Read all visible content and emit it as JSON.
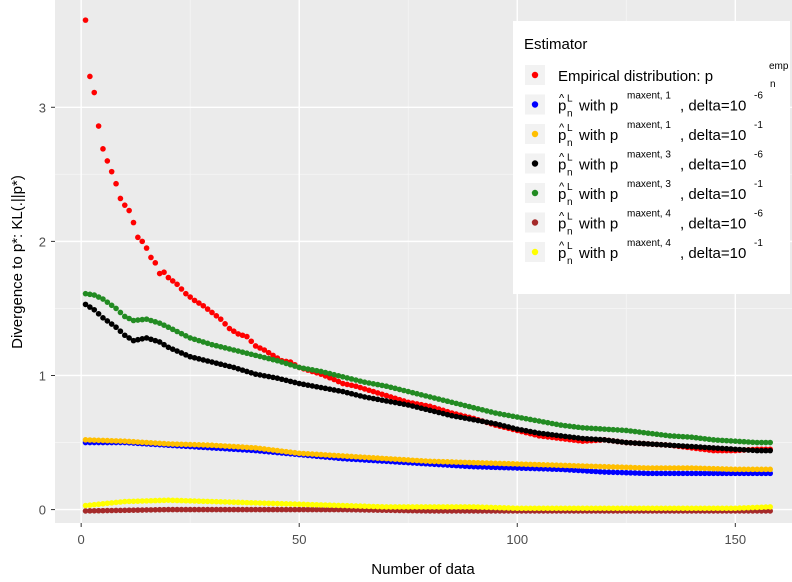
{
  "chart_data": {
    "type": "scatter",
    "title": "",
    "xlabel": "Number of data",
    "ylabel": "Divergence to p*: KL(.||p*)",
    "xlim": [
      -6,
      163
    ],
    "ylim": [
      -0.1,
      3.8
    ],
    "x_ticks": [
      0,
      50,
      100,
      150
    ],
    "y_ticks": [
      0,
      1,
      2,
      3
    ],
    "x_tick_labels": [
      "0",
      "50",
      "100",
      "150"
    ],
    "y_tick_labels": [
      "0",
      "1",
      "2",
      "3"
    ],
    "grid": true,
    "legend_position": "top-right",
    "legend_title": "Estimator",
    "series": [
      {
        "name": "Empirical distribution: p_n^emp",
        "label_main": "Empirical distribution: p",
        "label_sup": "emp",
        "label_sub": "n",
        "color": "#ff0000",
        "points": [
          [
            1,
            3.65
          ],
          [
            2,
            3.23
          ],
          [
            3,
            3.11
          ],
          [
            4,
            2.86
          ],
          [
            5,
            2.69
          ],
          [
            6,
            2.6
          ],
          [
            7,
            2.52
          ],
          [
            8,
            2.43
          ],
          [
            9,
            2.32
          ],
          [
            10,
            2.27
          ],
          [
            11,
            2.23
          ],
          [
            12,
            2.14
          ],
          [
            13,
            2.03
          ],
          [
            14,
            2.0
          ],
          [
            15,
            1.95
          ],
          [
            16,
            1.88
          ],
          [
            17,
            1.84
          ],
          [
            18,
            1.76
          ],
          [
            19,
            1.77
          ],
          [
            20,
            1.73
          ],
          [
            22,
            1.68
          ],
          [
            24,
            1.61
          ],
          [
            26,
            1.56
          ],
          [
            28,
            1.52
          ],
          [
            30,
            1.47
          ],
          [
            32,
            1.42
          ],
          [
            34,
            1.35
          ],
          [
            36,
            1.31
          ],
          [
            38,
            1.29
          ],
          [
            40,
            1.22
          ],
          [
            42,
            1.19
          ],
          [
            44,
            1.15
          ],
          [
            46,
            1.11
          ],
          [
            48,
            1.1
          ],
          [
            50,
            1.06
          ],
          [
            52,
            1.04
          ],
          [
            55,
            1.01
          ],
          [
            58,
            0.97
          ],
          [
            60,
            0.94
          ],
          [
            63,
            0.92
          ],
          [
            66,
            0.89
          ],
          [
            70,
            0.85
          ],
          [
            75,
            0.8
          ],
          [
            80,
            0.77
          ],
          [
            85,
            0.72
          ],
          [
            90,
            0.68
          ],
          [
            95,
            0.63
          ],
          [
            100,
            0.59
          ],
          [
            105,
            0.55
          ],
          [
            110,
            0.53
          ],
          [
            115,
            0.51
          ],
          [
            120,
            0.52
          ],
          [
            125,
            0.5
          ],
          [
            130,
            0.49
          ],
          [
            135,
            0.48
          ],
          [
            140,
            0.46
          ],
          [
            145,
            0.44
          ],
          [
            150,
            0.44
          ],
          [
            155,
            0.45
          ],
          [
            158,
            0.45
          ]
        ]
      },
      {
        "name": "p_n^L with p^maxent,1, delta=10^-6",
        "label_main": "with p",
        "label_sup": "maxent, 1",
        "label_tail": ", delta=10",
        "label_exp": "-6",
        "color": "#0000ff",
        "points": [
          [
            1,
            0.5
          ],
          [
            10,
            0.5
          ],
          [
            20,
            0.48
          ],
          [
            30,
            0.46
          ],
          [
            40,
            0.44
          ],
          [
            50,
            0.41
          ],
          [
            60,
            0.38
          ],
          [
            70,
            0.36
          ],
          [
            80,
            0.34
          ],
          [
            90,
            0.32
          ],
          [
            100,
            0.31
          ],
          [
            110,
            0.3
          ],
          [
            120,
            0.28
          ],
          [
            130,
            0.27
          ],
          [
            140,
            0.27
          ],
          [
            150,
            0.27
          ],
          [
            158,
            0.27
          ]
        ]
      },
      {
        "name": "p_n^L with p^maxent,1, delta=10^-1",
        "label_main": "with p",
        "label_sup": "maxent, 1",
        "label_tail": ", delta=10",
        "label_exp": "-1",
        "color": "#ffbf00",
        "points": [
          [
            1,
            0.52
          ],
          [
            10,
            0.51
          ],
          [
            20,
            0.49
          ],
          [
            30,
            0.48
          ],
          [
            40,
            0.46
          ],
          [
            50,
            0.42
          ],
          [
            60,
            0.4
          ],
          [
            70,
            0.38
          ],
          [
            80,
            0.36
          ],
          [
            90,
            0.35
          ],
          [
            100,
            0.34
          ],
          [
            110,
            0.33
          ],
          [
            120,
            0.32
          ],
          [
            130,
            0.31
          ],
          [
            140,
            0.31
          ],
          [
            150,
            0.3
          ],
          [
            158,
            0.3
          ]
        ]
      },
      {
        "name": "p_n^L with p^maxent,3, delta=10^-6",
        "label_main": "with p",
        "label_sup": "maxent, 3",
        "label_tail": ", delta=10",
        "label_exp": "-6",
        "color": "#000000",
        "points": [
          [
            1,
            1.53
          ],
          [
            3,
            1.49
          ],
          [
            5,
            1.43
          ],
          [
            8,
            1.36
          ],
          [
            10,
            1.3
          ],
          [
            12,
            1.26
          ],
          [
            15,
            1.28
          ],
          [
            18,
            1.25
          ],
          [
            20,
            1.21
          ],
          [
            25,
            1.14
          ],
          [
            30,
            1.1
          ],
          [
            35,
            1.06
          ],
          [
            40,
            1.01
          ],
          [
            45,
            0.98
          ],
          [
            50,
            0.94
          ],
          [
            55,
            0.91
          ],
          [
            60,
            0.88
          ],
          [
            65,
            0.84
          ],
          [
            70,
            0.81
          ],
          [
            75,
            0.78
          ],
          [
            80,
            0.74
          ],
          [
            85,
            0.7
          ],
          [
            90,
            0.67
          ],
          [
            95,
            0.64
          ],
          [
            100,
            0.6
          ],
          [
            105,
            0.57
          ],
          [
            110,
            0.55
          ],
          [
            115,
            0.53
          ],
          [
            120,
            0.52
          ],
          [
            125,
            0.5
          ],
          [
            130,
            0.49
          ],
          [
            135,
            0.48
          ],
          [
            140,
            0.47
          ],
          [
            145,
            0.46
          ],
          [
            150,
            0.45
          ],
          [
            155,
            0.44
          ],
          [
            158,
            0.44
          ]
        ]
      },
      {
        "name": "p_n^L with p^maxent,3, delta=10^-1",
        "label_main": "with p",
        "label_sup": "maxent, 3",
        "label_tail": ", delta=10",
        "label_exp": "-1",
        "color": "#228b22",
        "points": [
          [
            1,
            1.61
          ],
          [
            3,
            1.6
          ],
          [
            5,
            1.57
          ],
          [
            8,
            1.5
          ],
          [
            10,
            1.44
          ],
          [
            12,
            1.41
          ],
          [
            15,
            1.42
          ],
          [
            18,
            1.39
          ],
          [
            20,
            1.36
          ],
          [
            25,
            1.28
          ],
          [
            30,
            1.23
          ],
          [
            35,
            1.19
          ],
          [
            40,
            1.15
          ],
          [
            45,
            1.11
          ],
          [
            50,
            1.06
          ],
          [
            55,
            1.03
          ],
          [
            60,
            0.99
          ],
          [
            65,
            0.95
          ],
          [
            70,
            0.92
          ],
          [
            75,
            0.88
          ],
          [
            80,
            0.84
          ],
          [
            85,
            0.8
          ],
          [
            90,
            0.76
          ],
          [
            95,
            0.72
          ],
          [
            100,
            0.69
          ],
          [
            105,
            0.66
          ],
          [
            110,
            0.63
          ],
          [
            115,
            0.61
          ],
          [
            120,
            0.6
          ],
          [
            125,
            0.59
          ],
          [
            130,
            0.57
          ],
          [
            135,
            0.55
          ],
          [
            140,
            0.54
          ],
          [
            145,
            0.52
          ],
          [
            150,
            0.51
          ],
          [
            155,
            0.5
          ],
          [
            158,
            0.5
          ]
        ]
      },
      {
        "name": "p_n^L with p^maxent,4, delta=10^-6",
        "label_main": "with p",
        "label_sup": "maxent, 4",
        "label_tail": ", delta=10",
        "label_exp": "-6",
        "color": "#a52a2a",
        "points": [
          [
            1,
            -0.01
          ],
          [
            20,
            0.0
          ],
          [
            40,
            0.0
          ],
          [
            60,
            0.0
          ],
          [
            80,
            -0.01
          ],
          [
            100,
            -0.01
          ],
          [
            120,
            -0.01
          ],
          [
            140,
            -0.01
          ],
          [
            158,
            -0.01
          ]
        ]
      },
      {
        "name": "p_n^L with p^maxent,4, delta=10^-1",
        "label_main": "with p",
        "label_sup": "maxent, 4",
        "label_tail": ", delta=10",
        "label_exp": "-1",
        "color": "#ffff00",
        "points": [
          [
            1,
            0.03
          ],
          [
            10,
            0.06
          ],
          [
            20,
            0.07
          ],
          [
            30,
            0.06
          ],
          [
            40,
            0.05
          ],
          [
            50,
            0.04
          ],
          [
            60,
            0.03
          ],
          [
            70,
            0.02
          ],
          [
            80,
            0.02
          ],
          [
            90,
            0.02
          ],
          [
            100,
            0.01
          ],
          [
            110,
            0.01
          ],
          [
            120,
            0.01
          ],
          [
            130,
            0.01
          ],
          [
            140,
            0.01
          ],
          [
            150,
            0.01
          ],
          [
            158,
            0.02
          ]
        ]
      }
    ]
  }
}
